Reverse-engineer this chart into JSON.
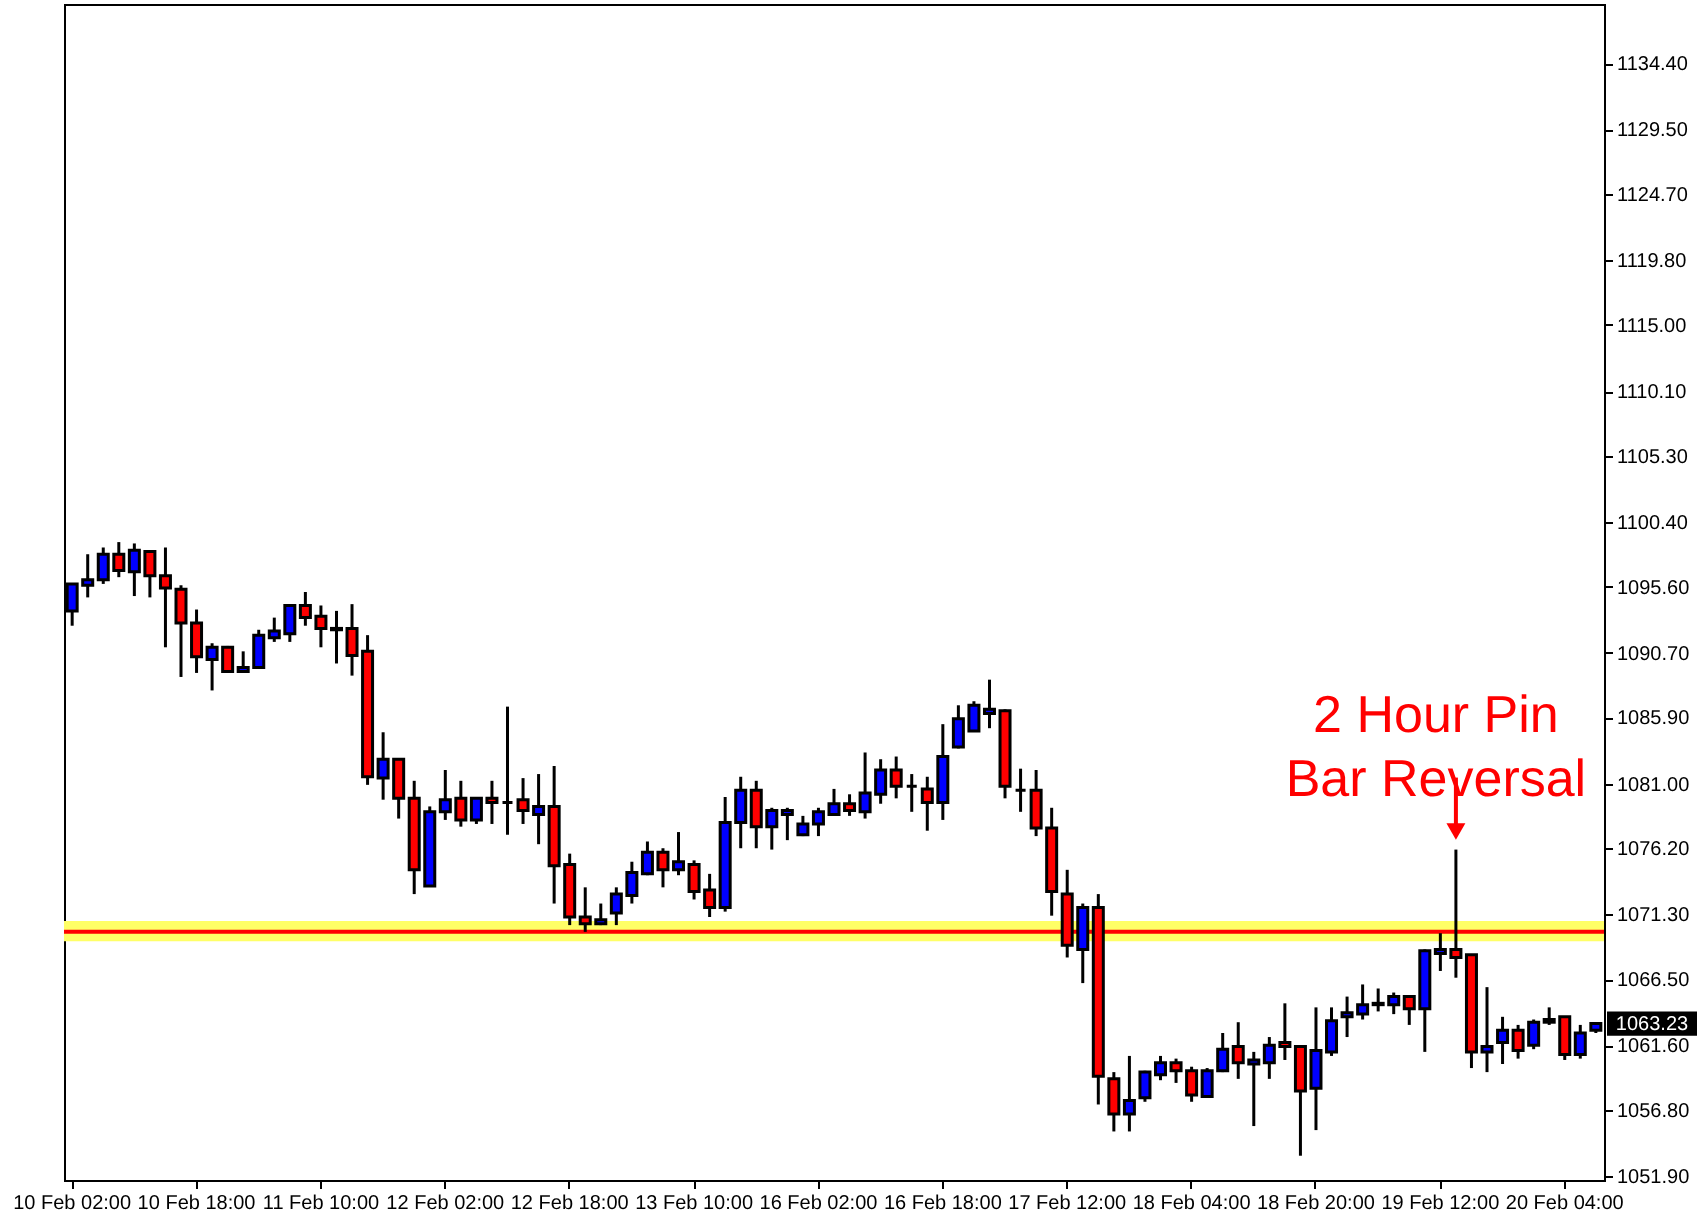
{
  "chart_data": {
    "type": "candlestick",
    "categories": [
      "10 Feb 02:00",
      null,
      null,
      null,
      null,
      null,
      null,
      null,
      "10 Feb 18:00",
      null,
      null,
      null,
      null,
      null,
      null,
      null,
      "11 Feb 10:00",
      null,
      null,
      null,
      null,
      null,
      null,
      null,
      "12 Feb 02:00",
      null,
      null,
      null,
      null,
      null,
      null,
      null,
      "12 Feb 18:00",
      null,
      null,
      null,
      null,
      null,
      null,
      null,
      "13 Feb 10:00",
      null,
      null,
      null,
      null,
      null,
      null,
      null,
      "16 Feb 02:00",
      null,
      null,
      null,
      null,
      null,
      null,
      null,
      "16 Feb 18:00",
      null,
      null,
      null,
      null,
      null,
      null,
      null,
      "17 Feb 12:00",
      null,
      null,
      null,
      null,
      null,
      null,
      null,
      "18 Feb 04:00",
      null,
      null,
      null,
      null,
      null,
      null,
      null,
      "18 Feb 20:00",
      null,
      null,
      null,
      null,
      null,
      null,
      null,
      "19 Feb 12:00",
      null,
      null,
      null,
      null,
      null,
      null,
      null,
      "20 Feb 04:00",
      null,
      null
    ],
    "ohlc": [
      [
        1093.8,
        1095.8,
        1092.7,
        1095.8
      ],
      [
        1095.7,
        1098.0,
        1094.8,
        1096.1
      ],
      [
        1096.1,
        1098.5,
        1095.8,
        1098.0
      ],
      [
        1098.0,
        1098.9,
        1096.3,
        1096.8
      ],
      [
        1096.7,
        1098.8,
        1094.9,
        1098.3
      ],
      [
        1098.2,
        1098.2,
        1094.8,
        1096.4
      ],
      [
        1096.4,
        1098.5,
        1091.1,
        1095.5
      ],
      [
        1095.4,
        1095.7,
        1088.9,
        1092.9
      ],
      [
        1092.9,
        1093.9,
        1089.2,
        1090.4
      ],
      [
        1090.2,
        1091.4,
        1087.9,
        1091.1
      ],
      [
        1091.1,
        1091.2,
        1089.3,
        1089.3
      ],
      [
        1089.3,
        1090.8,
        1089.2,
        1089.6
      ],
      [
        1089.6,
        1092.4,
        1089.5,
        1092.0
      ],
      [
        1091.8,
        1093.3,
        1091.5,
        1092.3
      ],
      [
        1092.1,
        1094.3,
        1091.5,
        1094.2
      ],
      [
        1094.2,
        1095.2,
        1092.7,
        1093.3
      ],
      [
        1093.4,
        1094.2,
        1091.1,
        1092.5
      ],
      [
        1092.5,
        1093.8,
        1089.9,
        1092.4
      ],
      [
        1092.5,
        1094.3,
        1089.0,
        1090.5
      ],
      [
        1090.8,
        1092.0,
        1080.9,
        1081.5
      ],
      [
        1081.4,
        1084.8,
        1079.8,
        1082.8
      ],
      [
        1082.8,
        1082.8,
        1078.4,
        1079.9
      ],
      [
        1079.9,
        1081.2,
        1072.8,
        1074.6
      ],
      [
        1073.4,
        1079.3,
        1073.4,
        1078.9
      ],
      [
        1078.9,
        1082.0,
        1078.3,
        1079.8
      ],
      [
        1079.9,
        1081.2,
        1077.8,
        1078.3
      ],
      [
        1078.3,
        1079.9,
        1078.0,
        1079.9
      ],
      [
        1079.9,
        1081.2,
        1078.0,
        1079.6
      ],
      [
        1079.6,
        1086.7,
        1077.2,
        1079.6
      ],
      [
        1079.8,
        1081.4,
        1078.0,
        1079.0
      ],
      [
        1078.7,
        1081.7,
        1076.5,
        1079.3
      ],
      [
        1079.3,
        1082.3,
        1072.1,
        1074.9
      ],
      [
        1075.0,
        1075.8,
        1070.5,
        1071.1
      ],
      [
        1071.1,
        1073.3,
        1070.0,
        1070.6
      ],
      [
        1070.6,
        1072.1,
        1070.5,
        1070.9
      ],
      [
        1071.4,
        1073.3,
        1070.5,
        1072.8
      ],
      [
        1072.7,
        1075.2,
        1072.1,
        1074.4
      ],
      [
        1074.3,
        1076.7,
        1074.2,
        1075.9
      ],
      [
        1075.9,
        1076.2,
        1073.3,
        1074.6
      ],
      [
        1074.6,
        1077.4,
        1074.2,
        1075.2
      ],
      [
        1075.0,
        1075.3,
        1072.4,
        1073.0
      ],
      [
        1073.1,
        1074.3,
        1071.1,
        1071.8
      ],
      [
        1071.8,
        1080.0,
        1071.5,
        1078.1
      ],
      [
        1078.1,
        1081.5,
        1076.2,
        1080.5
      ],
      [
        1080.5,
        1081.2,
        1076.2,
        1077.8
      ],
      [
        1077.8,
        1079.2,
        1076.1,
        1079.0
      ],
      [
        1078.7,
        1079.2,
        1076.8,
        1079.0
      ],
      [
        1077.2,
        1078.6,
        1077.1,
        1078.0
      ],
      [
        1078.0,
        1079.2,
        1077.1,
        1078.9
      ],
      [
        1078.7,
        1080.6,
        1078.6,
        1079.5
      ],
      [
        1079.5,
        1080.2,
        1078.6,
        1079.0
      ],
      [
        1078.9,
        1083.3,
        1078.4,
        1080.3
      ],
      [
        1080.2,
        1082.8,
        1079.5,
        1082.0
      ],
      [
        1082.0,
        1083.0,
        1079.9,
        1080.8
      ],
      [
        1080.8,
        1081.7,
        1078.9,
        1080.8
      ],
      [
        1080.6,
        1081.5,
        1077.5,
        1079.6
      ],
      [
        1079.6,
        1085.4,
        1078.3,
        1083.0
      ],
      [
        1083.7,
        1086.8,
        1083.6,
        1085.8
      ],
      [
        1084.9,
        1087.1,
        1084.9,
        1086.8
      ],
      [
        1086.2,
        1088.7,
        1085.1,
        1086.5
      ],
      [
        1086.4,
        1086.5,
        1079.9,
        1080.8
      ],
      [
        1080.5,
        1082.1,
        1078.9,
        1080.5
      ],
      [
        1080.5,
        1082.0,
        1077.1,
        1077.7
      ],
      [
        1077.7,
        1079.2,
        1071.2,
        1073.0
      ],
      [
        1072.8,
        1074.6,
        1068.1,
        1069.0
      ],
      [
        1068.7,
        1072.1,
        1066.2,
        1071.8
      ],
      [
        1071.8,
        1072.8,
        1057.2,
        1059.3
      ],
      [
        1059.1,
        1059.6,
        1055.2,
        1056.5
      ],
      [
        1056.5,
        1060.8,
        1055.2,
        1057.5
      ],
      [
        1057.7,
        1059.7,
        1057.4,
        1059.6
      ],
      [
        1059.4,
        1060.8,
        1059.0,
        1060.3
      ],
      [
        1060.3,
        1060.6,
        1058.8,
        1059.7
      ],
      [
        1059.7,
        1060.0,
        1057.4,
        1057.9
      ],
      [
        1057.8,
        1059.9,
        1057.7,
        1059.7
      ],
      [
        1059.7,
        1062.5,
        1059.6,
        1061.3
      ],
      [
        1061.5,
        1063.3,
        1059.1,
        1060.3
      ],
      [
        1060.2,
        1061.1,
        1055.6,
        1060.5
      ],
      [
        1060.3,
        1062.2,
        1059.1,
        1061.6
      ],
      [
        1061.8,
        1064.7,
        1060.5,
        1061.5
      ],
      [
        1061.5,
        1061.5,
        1053.4,
        1058.2
      ],
      [
        1058.4,
        1064.4,
        1055.3,
        1061.2
      ],
      [
        1061.1,
        1064.4,
        1060.8,
        1063.4
      ],
      [
        1063.7,
        1065.2,
        1062.2,
        1064.0
      ],
      [
        1063.9,
        1066.1,
        1063.5,
        1064.6
      ],
      [
        1064.6,
        1065.8,
        1064.1,
        1064.7
      ],
      [
        1064.6,
        1065.5,
        1063.9,
        1065.2
      ],
      [
        1065.2,
        1065.3,
        1063.1,
        1064.3
      ],
      [
        1064.3,
        1068.7,
        1061.1,
        1068.6
      ],
      [
        1068.4,
        1069.9,
        1067.1,
        1068.7
      ],
      [
        1068.7,
        1076.1,
        1066.6,
        1068.1
      ],
      [
        1068.3,
        1068.3,
        1059.9,
        1061.1
      ],
      [
        1061.1,
        1065.9,
        1059.6,
        1061.5
      ],
      [
        1061.8,
        1063.7,
        1060.2,
        1062.7
      ],
      [
        1062.7,
        1063.1,
        1060.6,
        1061.2
      ],
      [
        1061.6,
        1063.5,
        1061.3,
        1063.3
      ],
      [
        1063.3,
        1064.4,
        1063.1,
        1063.5
      ],
      [
        1063.7,
        1063.7,
        1060.5,
        1060.9
      ],
      [
        1060.9,
        1063.1,
        1060.6,
        1062.5
      ],
      [
        1062.7,
        1063.3,
        1062.5,
        1063.2
      ]
    ],
    "colors": [
      "#0000ff",
      "#0000ff",
      "#0000ff",
      "#ff0000",
      "#0000ff",
      "#ff0000",
      "#ff0000",
      "#ff0000",
      "#ff0000",
      "#0000ff",
      "#ff0000",
      "#0000ff",
      "#0000ff",
      "#0000ff",
      "#0000ff",
      "#ff0000",
      "#ff0000",
      "#ff0000",
      "#ff0000",
      "#ff0000",
      "#0000ff",
      "#ff0000",
      "#ff0000",
      "#0000ff",
      "#0000ff",
      "#ff0000",
      "#0000ff",
      "#ff0000",
      "#000000",
      "#ff0000",
      "#0000ff",
      "#ff0000",
      "#ff0000",
      "#ff0000",
      "#0000ff",
      "#0000ff",
      "#0000ff",
      "#0000ff",
      "#ff0000",
      "#0000ff",
      "#ff0000",
      "#ff0000",
      "#0000ff",
      "#0000ff",
      "#ff0000",
      "#0000ff",
      "#0000ff",
      "#0000ff",
      "#0000ff",
      "#0000ff",
      "#ff0000",
      "#0000ff",
      "#0000ff",
      "#ff0000",
      "#000000",
      "#ff0000",
      "#0000ff",
      "#0000ff",
      "#0000ff",
      "#0000ff",
      "#ff0000",
      "#000000",
      "#ff0000",
      "#ff0000",
      "#ff0000",
      "#0000ff",
      "#ff0000",
      "#ff0000",
      "#0000ff",
      "#0000ff",
      "#0000ff",
      "#ff0000",
      "#ff0000",
      "#0000ff",
      "#0000ff",
      "#ff0000",
      "#0000ff",
      "#0000ff",
      "#ff0000",
      "#ff0000",
      "#0000ff",
      "#0000ff",
      "#0000ff",
      "#0000ff",
      "#0000ff",
      "#0000ff",
      "#ff0000",
      "#0000ff",
      "#0000ff",
      "#ff0000",
      "#ff0000",
      "#0000ff",
      "#0000ff",
      "#ff0000",
      "#0000ff",
      "#0000ff",
      "#ff0000",
      "#0000ff",
      "#0000ff"
    ],
    "ylim": [
      1051.6,
      1138.8
    ],
    "yticks": [
      {
        "value": 1134.4,
        "label": "1134.40"
      },
      {
        "value": 1129.5,
        "label": "1129.50"
      },
      {
        "value": 1124.7,
        "label": "1124.70"
      },
      {
        "value": 1119.8,
        "label": "1119.80"
      },
      {
        "value": 1115.0,
        "label": "1115.00"
      },
      {
        "value": 1110.1,
        "label": "1110.10"
      },
      {
        "value": 1105.3,
        "label": "1105.30"
      },
      {
        "value": 1100.4,
        "label": "1100.40"
      },
      {
        "value": 1095.6,
        "label": "1095.60"
      },
      {
        "value": 1090.7,
        "label": "1090.70"
      },
      {
        "value": 1085.9,
        "label": "1085.90"
      },
      {
        "value": 1081.0,
        "label": "1081.00"
      },
      {
        "value": 1076.2,
        "label": "1076.20"
      },
      {
        "value": 1071.3,
        "label": "1071.30"
      },
      {
        "value": 1066.5,
        "label": "1066.50"
      },
      {
        "value": 1061.6,
        "label": "1061.60"
      },
      {
        "value": 1056.8,
        "label": "1056.80"
      },
      {
        "value": 1051.9,
        "label": "1051.90"
      }
    ],
    "ref_lines": [
      {
        "axis": "y",
        "value": 1070.0,
        "color": "#ff0000"
      }
    ],
    "bands": [
      {
        "axis": "y",
        "from": 1069.3,
        "to": 1070.8,
        "color": "#ffff66"
      }
    ],
    "annotations": [
      "2 Hour Pin\nBar Reversal",
      "1063.23"
    ],
    "grid": false
  }
}
